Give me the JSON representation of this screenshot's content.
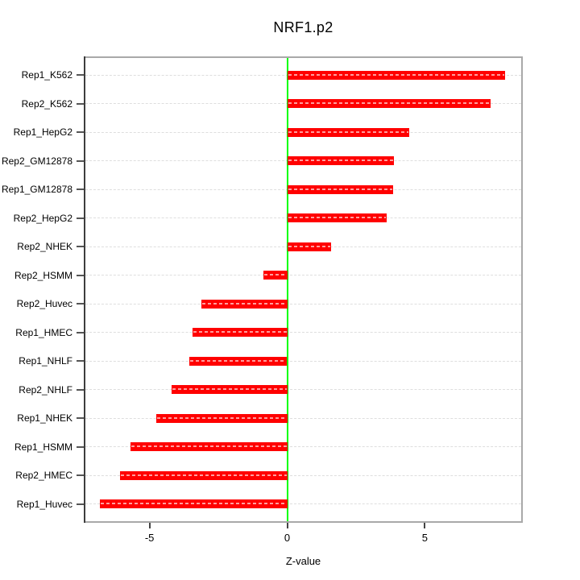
{
  "figure": {
    "title": "NRF1.p2",
    "xlabel": "Z-value"
  },
  "chart_data": {
    "type": "bar",
    "orientation": "horizontal",
    "title": "NRF1.p2",
    "xlabel": "Z-value",
    "ylabel": "",
    "categories": [
      "Rep1_K562",
      "Rep2_K562",
      "Rep1_HepG2",
      "Rep2_GM12878",
      "Rep1_GM12878",
      "Rep2_HepG2",
      "Rep2_NHEK",
      "Rep2_HSMM",
      "Rep2_Huvec",
      "Rep1_HMEC",
      "Rep1_NHLF",
      "Rep2_NHLF",
      "Rep1_NHEK",
      "Rep1_HSMM",
      "Rep2_HMEC",
      "Rep1_Huvec"
    ],
    "values": [
      7.92,
      7.4,
      4.42,
      3.87,
      3.86,
      3.6,
      1.6,
      -0.85,
      -3.12,
      -3.43,
      -3.55,
      -4.21,
      -4.76,
      -5.7,
      -6.08,
      -6.81
    ],
    "xlim": [
      -7.33,
      8.5
    ],
    "x_ticks": [
      -5,
      0,
      5
    ],
    "grid": true,
    "grid_style": "dashed-horizontal-per-category",
    "legend_position": "none",
    "zero_reference_line": 0
  },
  "colors": {
    "bar": "#ff0000",
    "zero_line": "#00ff00",
    "grid_line": "#dedede",
    "box_border": "#a9a9a9",
    "axis_line": "#3d3d3d",
    "tick": "#444444",
    "text": "#000000",
    "background": "#ffffff"
  }
}
